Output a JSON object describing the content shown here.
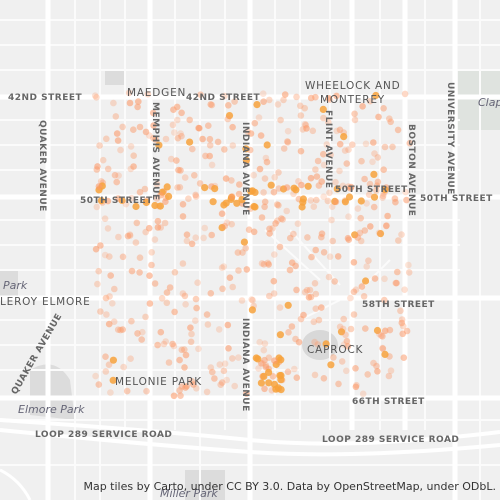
{
  "map": {
    "labels": [
      "42ND STREET",
      "MAEDGEN",
      "42ND STREET",
      "WHEELOCK AND",
      "MONTEREY",
      "UNIVERSITY AVENUE",
      "Clap",
      "QUAKER AVENUE",
      "MEMPHIS AVENUE",
      "INDIANA AVENUE",
      "FLINT AVENUE",
      "BOSTON AVENUE",
      "50TH STREET",
      "50TH STREET",
      "50TH STREET",
      "Park",
      "LEROY ELMORE",
      "58TH STREET",
      "CAPROCK",
      "MELONIE PARK",
      "INDIANA AVENUE",
      "QUAKER AVENUE",
      "Elmore Park",
      "66TH STREET",
      "LOOP 289 SERVICE ROAD",
      "LOOP 289 SERVICE ROAD",
      "Miller Park"
    ],
    "attribution": "Map tiles by Carto, under CC BY 3.0. Data by OpenStreetMap, under ODbL."
  }
}
